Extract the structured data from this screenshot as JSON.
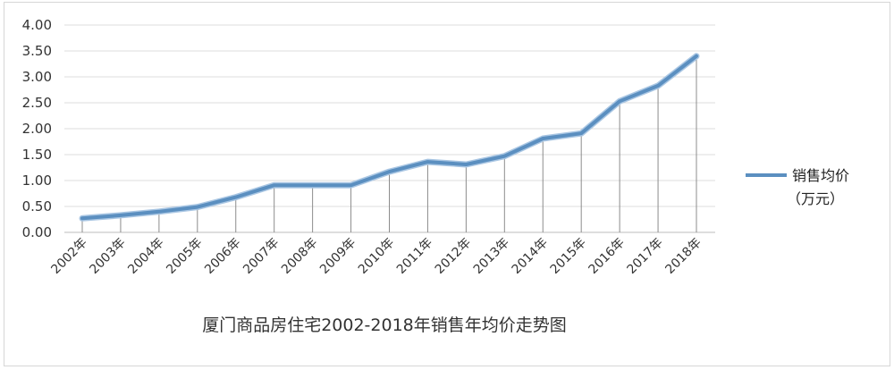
{
  "chart_data": {
    "type": "line",
    "title": "厦门商品房住宅2002-2018年销售年均价走势图",
    "xlabel": "",
    "ylabel": "",
    "categories": [
      "2002年",
      "2003年",
      "2004年",
      "2005年",
      "2006年",
      "2007年",
      "2008年",
      "2009年",
      "2010年",
      "2011年",
      "2012年",
      "2013年",
      "2014年",
      "2015年",
      "2016年",
      "2017年",
      "2018年"
    ],
    "series": [
      {
        "name": "销售均价（万元）",
        "legend_line1": "销售均价",
        "legend_line2": "（万元）",
        "color": "#5b8fc0",
        "values": [
          0.27,
          0.33,
          0.4,
          0.49,
          0.68,
          0.91,
          0.91,
          0.91,
          1.17,
          1.36,
          1.31,
          1.47,
          1.81,
          1.91,
          2.53,
          2.83,
          3.4
        ]
      }
    ],
    "y_ticks": [
      "0.00",
      "0.50",
      "1.00",
      "1.50",
      "2.00",
      "2.50",
      "3.00",
      "3.50",
      "4.00"
    ],
    "ylim": [
      0,
      4
    ],
    "grid": true,
    "drop_lines": true,
    "legend_position": "right"
  }
}
